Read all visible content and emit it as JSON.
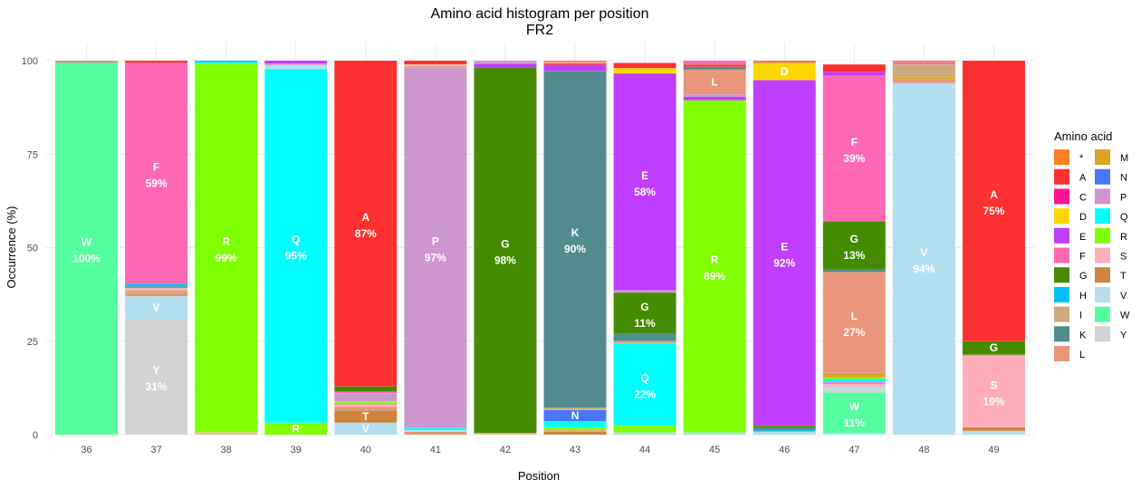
{
  "chart_data": {
    "type": "bar",
    "stacked": true,
    "title": "Amino acid histogram per position",
    "subtitle": "FR2",
    "xlabel": "Position",
    "ylabel": "Occurrence (%)",
    "ylim": [
      0,
      100
    ],
    "y_ticks": [
      "0",
      "25",
      "50",
      "75",
      "100"
    ],
    "grid": true,
    "legend": {
      "title": "Amino acid",
      "placement": "right"
    },
    "categories": [
      "36",
      "37",
      "38",
      "39",
      "40",
      "41",
      "42",
      "43",
      "44",
      "45",
      "46",
      "47",
      "48",
      "49"
    ],
    "colors": {
      "*": "#ff7f24",
      "A": "#ff3030",
      "C": "#ff1493",
      "D": "#ffd700",
      "E": "#bf3eff",
      "F": "#ff69b4",
      "G": "#458b00",
      "H": "#00bfff",
      "I": "#cdaa7d",
      "K": "#528b8b",
      "L": "#e9967a",
      "M": "#daa520",
      "N": "#4876ff",
      "P": "#cd96cd",
      "Q": "#00ffff",
      "R": "#7fff00",
      "S": "#ffaeb9",
      "T": "#cd853f",
      "V": "#b2dfee",
      "W": "#54ff9f",
      "Y": "#d3d3d3"
    },
    "legend_order": [
      "*",
      "A",
      "C",
      "D",
      "E",
      "F",
      "G",
      "H",
      "I",
      "K",
      "L",
      "M",
      "N",
      "P",
      "Q",
      "R",
      "S",
      "T",
      "V",
      "W",
      "Y"
    ],
    "stacks": [
      [
        {
          "aa": "W",
          "v": 99.6,
          "label": "W",
          "pct": "100%"
        },
        {
          "aa": "A",
          "v": 0.2
        },
        {
          "aa": "F",
          "v": 0.2
        }
      ],
      [
        {
          "aa": "Y",
          "v": 31,
          "label": "Y",
          "pct": "31%"
        },
        {
          "aa": "V",
          "v": 6,
          "label": "V"
        },
        {
          "aa": "L",
          "v": 0.8
        },
        {
          "aa": "I",
          "v": 0.8
        },
        {
          "aa": "S",
          "v": 0.6
        },
        {
          "aa": "T",
          "v": 0.4
        },
        {
          "aa": "H",
          "v": 0.8
        },
        {
          "aa": "F",
          "v": 59,
          "label": "F",
          "pct": "59%"
        },
        {
          "aa": "A",
          "v": 0.6
        }
      ],
      [
        {
          "aa": "S",
          "v": 0.6
        },
        {
          "aa": "R",
          "v": 98.6,
          "label": "R",
          "pct": "99%"
        },
        {
          "aa": "Q",
          "v": 0.4
        },
        {
          "aa": "H",
          "v": 0.4
        }
      ],
      [
        {
          "aa": "R",
          "v": 3.2,
          "label": "R"
        },
        {
          "aa": "Q",
          "v": 94.6,
          "label": "Q",
          "pct": "95%"
        },
        {
          "aa": "V",
          "v": 1
        },
        {
          "aa": "P",
          "v": 0.4
        },
        {
          "aa": "E",
          "v": 0.8
        }
      ],
      [
        {
          "aa": "V",
          "v": 3.2,
          "label": "V"
        },
        {
          "aa": "T",
          "v": 3.3,
          "label": "T"
        },
        {
          "aa": "L",
          "v": 1
        },
        {
          "aa": "S",
          "v": 0.5
        },
        {
          "aa": "I",
          "v": 0.5
        },
        {
          "aa": "R",
          "v": 0.4
        },
        {
          "aa": "P",
          "v": 2.2
        },
        {
          "aa": "F",
          "v": 0.4
        },
        {
          "aa": "G",
          "v": 1.4
        },
        {
          "aa": "A",
          "v": 87.1,
          "label": "A",
          "pct": "87%"
        }
      ],
      [
        {
          "aa": "L",
          "v": 0.8
        },
        {
          "aa": "V",
          "v": 0.4
        },
        {
          "aa": "Q",
          "v": 0.6
        },
        {
          "aa": "P",
          "v": 96.4,
          "label": "P",
          "pct": "97%"
        },
        {
          "aa": "I",
          "v": 0.4
        },
        {
          "aa": "S",
          "v": 0.4
        },
        {
          "aa": "A",
          "v": 1
        }
      ],
      [
        {
          "aa": "S",
          "v": 0.4
        },
        {
          "aa": "G",
          "v": 97.8,
          "label": "G",
          "pct": "98%"
        },
        {
          "aa": "E",
          "v": 1
        },
        {
          "aa": "P",
          "v": 0.8
        }
      ],
      [
        {
          "aa": "T",
          "v": 0.8
        },
        {
          "aa": "L",
          "v": 0.4
        },
        {
          "aa": "R",
          "v": 0.8
        },
        {
          "aa": "Q",
          "v": 1.6
        },
        {
          "aa": "N",
          "v": 3,
          "label": "N"
        },
        {
          "aa": "I",
          "v": 0.6
        },
        {
          "aa": "K",
          "v": 90.1,
          "label": "K",
          "pct": "90%"
        },
        {
          "aa": "E",
          "v": 1.6
        },
        {
          "aa": "A",
          "v": 0.4
        },
        {
          "aa": "D",
          "v": 0.2
        },
        {
          "aa": "F",
          "v": 0.5
        }
      ],
      [
        {
          "aa": "V",
          "v": 0.6
        },
        {
          "aa": "R",
          "v": 1.8
        },
        {
          "aa": "Q",
          "v": 22,
          "label": "Q",
          "pct": "22%"
        },
        {
          "aa": "I",
          "v": 0.6
        },
        {
          "aa": "K",
          "v": 2
        },
        {
          "aa": "G",
          "v": 11,
          "label": "G",
          "pct": "11%"
        },
        {
          "aa": "P",
          "v": 0.6
        },
        {
          "aa": "E",
          "v": 58,
          "label": "E",
          "pct": "58%"
        },
        {
          "aa": "D",
          "v": 1.4
        },
        {
          "aa": "A",
          "v": 1.4
        }
      ],
      [
        {
          "aa": "V",
          "v": 0.6
        },
        {
          "aa": "R",
          "v": 88.8,
          "label": "R",
          "pct": "89%"
        },
        {
          "aa": "E",
          "v": 1
        },
        {
          "aa": "P",
          "v": 0.6
        },
        {
          "aa": "L",
          "v": 6.6,
          "label": "L"
        },
        {
          "aa": "K",
          "v": 0.8
        },
        {
          "aa": "A",
          "v": 0.6
        },
        {
          "aa": "F",
          "v": 1
        }
      ],
      [
        {
          "aa": "V",
          "v": 0.8
        },
        {
          "aa": "H",
          "v": 0.4
        },
        {
          "aa": "K",
          "v": 0.6
        },
        {
          "aa": "G",
          "v": 0.6
        },
        {
          "aa": "E",
          "v": 92.4,
          "label": "E",
          "pct": "92%"
        },
        {
          "aa": "D",
          "v": 4.6,
          "label": "D"
        },
        {
          "aa": "A",
          "v": 0.2
        },
        {
          "aa": "T",
          "v": 0.4
        }
      ],
      [
        {
          "aa": "V",
          "v": 0.4
        },
        {
          "aa": "W",
          "v": 10.9,
          "label": "W",
          "pct": "11%"
        },
        {
          "aa": "Y",
          "v": 0.8
        },
        {
          "aa": "V",
          "v": 0.6
        },
        {
          "aa": "S",
          "v": 0.8
        },
        {
          "aa": "P",
          "v": 0.8
        },
        {
          "aa": "Q",
          "v": 0.6
        },
        {
          "aa": "R",
          "v": 0.4
        },
        {
          "aa": "M",
          "v": 1.2
        },
        {
          "aa": "L",
          "v": 27,
          "label": "L",
          "pct": "27%"
        },
        {
          "aa": "K",
          "v": 0.6
        },
        {
          "aa": "G",
          "v": 13,
          "label": "G",
          "pct": "13%"
        },
        {
          "aa": "F",
          "v": 38.9,
          "label": "F",
          "pct": "39%"
        },
        {
          "aa": "E",
          "v": 1
        },
        {
          "aa": "A",
          "v": 2
        }
      ],
      [
        {
          "aa": "V",
          "v": 94,
          "label": "V",
          "pct": "94%"
        },
        {
          "aa": "L",
          "v": 1
        },
        {
          "aa": "M",
          "v": 0.6
        },
        {
          "aa": "I",
          "v": 3.4
        },
        {
          "aa": "F",
          "v": 0.6
        },
        {
          "aa": "T",
          "v": 0.4
        }
      ],
      [
        {
          "aa": "V",
          "v": 1
        },
        {
          "aa": "T",
          "v": 1
        },
        {
          "aa": "S",
          "v": 19,
          "label": "S",
          "pct": "19%"
        },
        {
          "aa": "L",
          "v": 0.4
        },
        {
          "aa": "G",
          "v": 3.6,
          "label": "G"
        },
        {
          "aa": "A",
          "v": 75,
          "label": "A",
          "pct": "75%"
        }
      ]
    ]
  }
}
